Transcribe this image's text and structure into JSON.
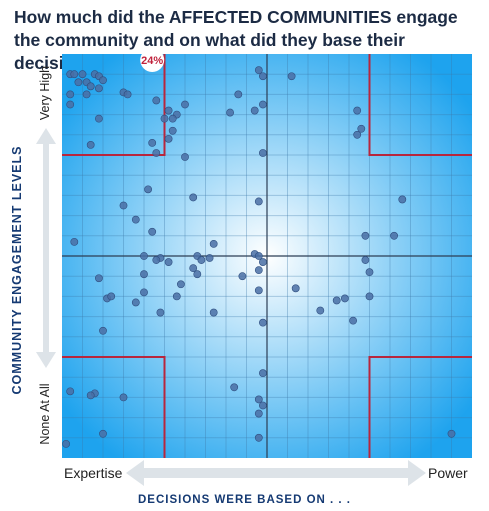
{
  "title": "How much did the AFFECTED COMMUNITIES engage the community and on what did they base their decisions.",
  "chart_data": {
    "type": "scatter",
    "title": "How much did the AFFECTED COMMUNITIES engage the community and on what did they base their decisions.",
    "xlabel": "DECISIONS WERE BASED ON . . .",
    "ylabel": "COMMUNITY ENGAGEMENT LEVELS",
    "x_tick_labels": [
      "Expertise",
      "Power"
    ],
    "y_tick_labels": [
      "None At All",
      "Very High"
    ],
    "xlim": [
      0,
      1
    ],
    "ylim": [
      0,
      1
    ],
    "grid": true,
    "annotations": [
      {
        "text": "24%",
        "x": 0.22,
        "y": 0.985
      }
    ],
    "point_color": "#4a6fa5",
    "background_colors": [
      "#1ea3ee",
      "#ffffff"
    ],
    "quadrant_line_color": "#b8263d",
    "points": [
      {
        "x": 0.02,
        "y": 0.95
      },
      {
        "x": 0.03,
        "y": 0.95
      },
      {
        "x": 0.05,
        "y": 0.95
      },
      {
        "x": 0.08,
        "y": 0.95
      },
      {
        "x": 0.09,
        "y": 0.945
      },
      {
        "x": 0.04,
        "y": 0.93
      },
      {
        "x": 0.06,
        "y": 0.93
      },
      {
        "x": 0.1,
        "y": 0.935
      },
      {
        "x": 0.07,
        "y": 0.92
      },
      {
        "x": 0.02,
        "y": 0.9
      },
      {
        "x": 0.06,
        "y": 0.9
      },
      {
        "x": 0.09,
        "y": 0.915
      },
      {
        "x": 0.15,
        "y": 0.905
      },
      {
        "x": 0.16,
        "y": 0.9
      },
      {
        "x": 0.02,
        "y": 0.875
      },
      {
        "x": 0.23,
        "y": 0.885
      },
      {
        "x": 0.26,
        "y": 0.86
      },
      {
        "x": 0.3,
        "y": 0.875
      },
      {
        "x": 0.28,
        "y": 0.85
      },
      {
        "x": 0.25,
        "y": 0.84
      },
      {
        "x": 0.27,
        "y": 0.84
      },
      {
        "x": 0.09,
        "y": 0.84
      },
      {
        "x": 0.27,
        "y": 0.81
      },
      {
        "x": 0.26,
        "y": 0.79
      },
      {
        "x": 0.07,
        "y": 0.775
      },
      {
        "x": 0.22,
        "y": 0.78
      },
      {
        "x": 0.23,
        "y": 0.755
      },
      {
        "x": 0.3,
        "y": 0.745
      },
      {
        "x": 0.43,
        "y": 0.9
      },
      {
        "x": 0.47,
        "y": 0.86
      },
      {
        "x": 0.41,
        "y": 0.855
      },
      {
        "x": 0.48,
        "y": 0.96
      },
      {
        "x": 0.49,
        "y": 0.945
      },
      {
        "x": 0.56,
        "y": 0.945
      },
      {
        "x": 0.49,
        "y": 0.875
      },
      {
        "x": 0.49,
        "y": 0.755
      },
      {
        "x": 0.72,
        "y": 0.86
      },
      {
        "x": 0.72,
        "y": 0.8
      },
      {
        "x": 0.73,
        "y": 0.815
      },
      {
        "x": 0.21,
        "y": 0.665
      },
      {
        "x": 0.32,
        "y": 0.645
      },
      {
        "x": 0.15,
        "y": 0.625
      },
      {
        "x": 0.48,
        "y": 0.635
      },
      {
        "x": 0.83,
        "y": 0.64
      },
      {
        "x": 0.03,
        "y": 0.535
      },
      {
        "x": 0.18,
        "y": 0.59
      },
      {
        "x": 0.22,
        "y": 0.56
      },
      {
        "x": 0.37,
        "y": 0.53
      },
      {
        "x": 0.74,
        "y": 0.55
      },
      {
        "x": 0.81,
        "y": 0.55
      },
      {
        "x": 0.74,
        "y": 0.49
      },
      {
        "x": 0.2,
        "y": 0.5
      },
      {
        "x": 0.24,
        "y": 0.495
      },
      {
        "x": 0.26,
        "y": 0.485
      },
      {
        "x": 0.33,
        "y": 0.5
      },
      {
        "x": 0.34,
        "y": 0.49
      },
      {
        "x": 0.36,
        "y": 0.495
      },
      {
        "x": 0.47,
        "y": 0.505
      },
      {
        "x": 0.48,
        "y": 0.5
      },
      {
        "x": 0.23,
        "y": 0.49
      },
      {
        "x": 0.32,
        "y": 0.47
      },
      {
        "x": 0.49,
        "y": 0.485
      },
      {
        "x": 0.2,
        "y": 0.455
      },
      {
        "x": 0.09,
        "y": 0.445
      },
      {
        "x": 0.33,
        "y": 0.455
      },
      {
        "x": 0.44,
        "y": 0.45
      },
      {
        "x": 0.48,
        "y": 0.465
      },
      {
        "x": 0.75,
        "y": 0.46
      },
      {
        "x": 0.57,
        "y": 0.42
      },
      {
        "x": 0.2,
        "y": 0.41
      },
      {
        "x": 0.29,
        "y": 0.43
      },
      {
        "x": 0.28,
        "y": 0.4
      },
      {
        "x": 0.48,
        "y": 0.415
      },
      {
        "x": 0.11,
        "y": 0.395
      },
      {
        "x": 0.12,
        "y": 0.4
      },
      {
        "x": 0.18,
        "y": 0.385
      },
      {
        "x": 0.67,
        "y": 0.39
      },
      {
        "x": 0.69,
        "y": 0.395
      },
      {
        "x": 0.75,
        "y": 0.4
      },
      {
        "x": 0.63,
        "y": 0.365
      },
      {
        "x": 0.24,
        "y": 0.36
      },
      {
        "x": 0.37,
        "y": 0.36
      },
      {
        "x": 0.71,
        "y": 0.34
      },
      {
        "x": 0.49,
        "y": 0.335
      },
      {
        "x": 0.1,
        "y": 0.315
      },
      {
        "x": 0.42,
        "y": 0.175
      },
      {
        "x": 0.49,
        "y": 0.21
      },
      {
        "x": 0.48,
        "y": 0.145
      },
      {
        "x": 0.49,
        "y": 0.13
      },
      {
        "x": 0.48,
        "y": 0.11
      },
      {
        "x": 0.08,
        "y": 0.16
      },
      {
        "x": 0.02,
        "y": 0.165
      },
      {
        "x": 0.07,
        "y": 0.155
      },
      {
        "x": 0.15,
        "y": 0.15
      },
      {
        "x": 0.1,
        "y": 0.06
      },
      {
        "x": 0.48,
        "y": 0.05
      },
      {
        "x": 0.01,
        "y": 0.035
      },
      {
        "x": 0.95,
        "y": 0.06
      }
    ]
  }
}
